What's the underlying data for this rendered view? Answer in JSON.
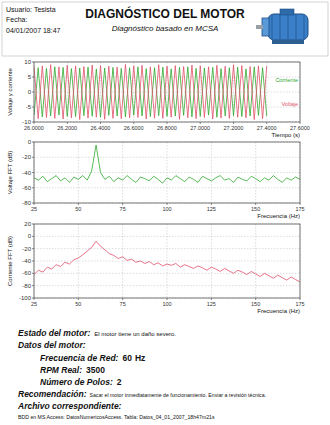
{
  "header": {
    "user": "Usuario: Tesista",
    "date_label": "Fecha:",
    "date": "04/01/2007 18:47",
    "title": "DIAGNÓSTICO DEL MOTOR",
    "subtitle": "Diagnóstico basado en MCSA"
  },
  "chart_data": [
    {
      "type": "line",
      "y_label": "Voltaje y corriente",
      "x_label": "Tiempo (s)",
      "x": [
        26,
        26.025,
        26.05,
        26.075,
        26.1,
        26.125,
        26.15,
        26.175,
        26.2,
        26.225,
        26.25,
        26.275,
        26.3,
        26.325,
        26.35,
        26.375,
        26.4,
        26.425,
        26.45,
        26.475,
        26.5,
        26.525,
        26.55,
        26.575,
        26.6,
        26.625,
        26.65,
        26.675,
        26.7,
        26.725,
        26.75,
        26.775,
        26.8,
        26.825,
        26.85,
        26.875,
        26.9,
        26.925,
        26.95,
        26.975,
        27,
        27.025,
        27.05,
        27.075,
        27.1,
        27.125,
        27.15,
        27.175,
        27.2,
        27.225,
        27.25,
        27.275,
        27.3,
        27.325,
        27.35,
        27.375,
        27.4
      ],
      "series": [
        {
          "name": "Corriente",
          "color": "#2ea82e",
          "values": [
            -7.8,
            8.1,
            -8.3,
            7.9,
            -8.0,
            8.4,
            -7.7,
            8.2,
            -8.1,
            7.8,
            -8.2,
            8.0,
            -7.9,
            8.3,
            -8.1,
            7.7,
            -8.4,
            8.0,
            -7.8,
            8.2,
            -8.0,
            7.9,
            -8.3,
            8.1,
            -7.7,
            8.4,
            -8.0,
            7.8,
            -8.2,
            8.1,
            -7.9,
            8.3,
            -8.1,
            7.7,
            -8.0,
            8.2,
            -7.8,
            8.4,
            -8.3,
            7.9,
            -8.1,
            8.0,
            -7.7,
            8.2,
            -8.4,
            7.8,
            -8.0,
            8.1,
            -7.9,
            8.3,
            -8.2,
            7.7,
            -8.0,
            8.4,
            -7.8,
            8.1,
            -8.0
          ]
        },
        {
          "name": "Voltaje",
          "color": "#e0506a",
          "values": [
            8.6,
            -8.9,
            8.7,
            -8.5,
            9.1,
            -8.8,
            8.4,
            -9.0,
            8.9,
            -8.6,
            8.7,
            -9.2,
            8.5,
            -8.7,
            9.0,
            -8.4,
            8.8,
            -9.1,
            8.6,
            -8.8,
            8.3,
            -8.9,
            9.2,
            -8.6,
            8.7,
            -8.5,
            8.9,
            -9.0,
            8.4,
            -8.7,
            9.1,
            -8.8,
            8.6,
            -8.4,
            8.8,
            -9.1,
            8.5,
            -8.6,
            9.0,
            -8.9,
            8.7,
            -8.5,
            8.4,
            -9.0,
            8.9,
            -8.7,
            8.6,
            -8.8,
            9.1,
            -8.4,
            8.8,
            -8.6,
            8.5,
            -9.2,
            8.7,
            -8.9,
            8.6
          ]
        }
      ],
      "xlim": [
        26,
        27.6
      ],
      "xticks": [
        {
          "value": 26,
          "label": "26.0000"
        },
        {
          "value": 26.2,
          "label": "26.2000"
        },
        {
          "value": 26.4,
          "label": "26.4000"
        },
        {
          "value": 26.6,
          "label": "26.6000"
        },
        {
          "value": 26.8,
          "label": "26.8000"
        },
        {
          "value": 27,
          "label": "27.0000"
        },
        {
          "value": 27.2,
          "label": "27.2000"
        },
        {
          "value": 27.4,
          "label": "27.4000"
        },
        {
          "value": 27.6,
          "label": "27.6000"
        }
      ],
      "ylim": [
        -10,
        10
      ],
      "yticks": [
        -10,
        -5,
        0,
        5,
        10
      ],
      "grid": true,
      "legend": "right"
    },
    {
      "type": "line",
      "y_label": "Voltaje FFT (dB)",
      "x_label": "Frecuencia (Hz)",
      "x": [
        25,
        27.5,
        30,
        32.5,
        35,
        37.5,
        40,
        42.5,
        45,
        47.5,
        50,
        52.5,
        55,
        57.5,
        60,
        62.5,
        65,
        67.5,
        70,
        72.5,
        75,
        77.5,
        80,
        82.5,
        85,
        87.5,
        90,
        92.5,
        95,
        97.5,
        100,
        102.5,
        105,
        107.5,
        110,
        112.5,
        115,
        117.5,
        120,
        122.5,
        125,
        127.5,
        130,
        132.5,
        135,
        137.5,
        140,
        142.5,
        145,
        147.5,
        150,
        152.5,
        155,
        157.5,
        160,
        162.5,
        165,
        167.5,
        170,
        172.5,
        175
      ],
      "series": [
        {
          "name": "Voltaje FFT",
          "color": "#2ea82e",
          "values": [
            -47,
            -50,
            -45,
            -52,
            -48,
            -44,
            -51,
            -47,
            -53,
            -46,
            -49,
            -44,
            -50,
            -38,
            -4,
            -40,
            -49,
            -45,
            -52,
            -47,
            -50,
            -44,
            -49,
            -53,
            -46,
            -48,
            -51,
            -45,
            -49,
            -54,
            -47,
            -50,
            -44,
            -48,
            -52,
            -46,
            -49,
            -53,
            -45,
            -48,
            -51,
            -47,
            -44,
            -50,
            -48,
            -53,
            -46,
            -49,
            -51,
            -45,
            -48,
            -52,
            -47,
            -50,
            -44,
            -49,
            -53,
            -47,
            -50,
            -46,
            -49
          ]
        }
      ],
      "xlim": [
        25,
        175
      ],
      "xticks": [
        25,
        50,
        75,
        100,
        125,
        150,
        175
      ],
      "ylim": [
        -80,
        0
      ],
      "yticks": [
        -80,
        -60,
        -40,
        -20,
        0
      ],
      "grid": true
    },
    {
      "type": "line",
      "y_label": "Corriente FFT (dB)",
      "x_label": "Frecuencia (Hz)",
      "x": [
        25,
        27.5,
        30,
        32.5,
        35,
        37.5,
        40,
        42.5,
        45,
        47.5,
        50,
        52.5,
        55,
        57.5,
        60,
        62.5,
        65,
        67.5,
        70,
        72.5,
        75,
        77.5,
        80,
        82.5,
        85,
        87.5,
        90,
        92.5,
        95,
        97.5,
        100,
        102.5,
        105,
        107.5,
        110,
        112.5,
        115,
        117.5,
        120,
        122.5,
        125,
        127.5,
        130,
        132.5,
        135,
        137.5,
        140,
        142.5,
        145,
        147.5,
        150,
        152.5,
        155,
        157.5,
        160,
        162.5,
        165,
        167.5,
        170,
        172.5,
        175
      ],
      "series": [
        {
          "name": "Corriente FFT",
          "color": "#e0506a",
          "values": [
            -62,
            -55,
            -58,
            -50,
            -53,
            -46,
            -49,
            -42,
            -45,
            -38,
            -35,
            -30,
            -24,
            -18,
            -8,
            -16,
            -22,
            -28,
            -31,
            -36,
            -33,
            -39,
            -37,
            -42,
            -40,
            -44,
            -41,
            -46,
            -43,
            -48,
            -45,
            -47,
            -44,
            -50,
            -46,
            -49,
            -52,
            -48,
            -51,
            -55,
            -50,
            -53,
            -57,
            -52,
            -56,
            -60,
            -55,
            -58,
            -62,
            -57,
            -61,
            -65,
            -60,
            -64,
            -68,
            -63,
            -67,
            -71,
            -66,
            -70,
            -74
          ]
        }
      ],
      "xlim": [
        25,
        175
      ],
      "xticks": [
        25,
        50,
        75,
        100,
        125,
        150,
        175
      ],
      "ylim": [
        -100,
        20
      ],
      "yticks": [
        -100,
        -80,
        -60,
        -40,
        -20,
        0,
        20
      ],
      "grid": true
    }
  ],
  "report": {
    "status": {
      "label": "Estado del motor:",
      "text": "El motor tiene un daño severo."
    },
    "data_heading": "Datos del motor:",
    "motor_data": [
      {
        "label": "Frecuencia de Red:",
        "value": 60,
        "unit": "Hz"
      },
      {
        "label": "RPM Real:",
        "value": 3500
      },
      {
        "label": "Número de Polos:",
        "value": 2
      }
    ],
    "recommendation": {
      "label": "Recomendación:",
      "text": "Sacar el motor inmediatamente de funcionamiento. Enviar a revisión técnica."
    },
    "file": {
      "label": "Archivo correspondiente:",
      "text": "BDD en MS Access: DatosNumericosAccess. Tabla: Datos_04_01_2007_18h47m21s"
    }
  }
}
